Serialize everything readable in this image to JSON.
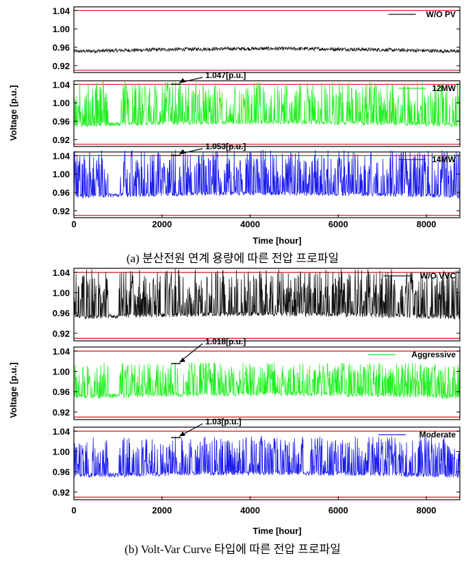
{
  "figure": {
    "caption_a": "(a) 분산전원 연계 용량에 따른 전압 프로파일",
    "caption_b": "(b) Volt-Var Curve 타입에 따른 전압 프로파일"
  },
  "colors": {
    "limit_line": "#d62728",
    "black": "#111111",
    "green": "#22ee22",
    "blue": "#1a1aee"
  },
  "chart_data": [
    {
      "type": "line",
      "group": "a",
      "xlim": [
        0,
        8760
      ],
      "ylim": [
        0.905,
        1.048
      ],
      "yticks": [
        "0.92",
        "0.96",
        "1.00",
        "1.04"
      ],
      "xticks": [
        "0",
        "2000",
        "4000",
        "6000",
        "8000"
      ],
      "ylabel": "Voltage [p.u.]",
      "xlabel": "Time [hour]",
      "limits": [
        0.91,
        1.04
      ],
      "panels": [
        {
          "legend": "W/O PV",
          "color": "#111111",
          "base": 0.951,
          "var": 0.008,
          "spike_max": 0.962,
          "annotation": ""
        },
        {
          "legend": "12MW",
          "color": "#22ee22",
          "base": 0.952,
          "var": 0.009,
          "spike_max": 1.047,
          "annotation": "1.047[p.u.]",
          "annot_x": 2300,
          "annot_y": 1.047
        },
        {
          "legend": "14MW",
          "color": "#1a1aee",
          "base": 0.952,
          "var": 0.009,
          "spike_max": 1.053,
          "annotation": "1.053[p.u.]",
          "annot_x": 2300,
          "annot_y": 1.053
        }
      ]
    },
    {
      "type": "line",
      "group": "b",
      "xlim": [
        0,
        8760
      ],
      "ylim": [
        0.905,
        1.048
      ],
      "yticks": [
        "0.92",
        "0.96",
        "1.00",
        "1.04"
      ],
      "xticks": [
        "0",
        "2000",
        "4000",
        "6000",
        "8000"
      ],
      "ylabel": "Voltage [p.u.]",
      "xlabel": "Time [hour]",
      "limits": [
        0.91,
        1.04
      ],
      "panels": [
        {
          "legend": "W/O VVC",
          "color": "#111111",
          "base": 0.952,
          "var": 0.009,
          "spike_max": 1.047,
          "annotation": ""
        },
        {
          "legend": "Aggressive",
          "color": "#22ee22",
          "base": 0.95,
          "var": 0.009,
          "spike_max": 1.018,
          "annotation": "1.018[p.u.]",
          "annot_x": 2300,
          "annot_y": 1.018
        },
        {
          "legend": "Moderate",
          "color": "#1a1aee",
          "base": 0.952,
          "var": 0.009,
          "spike_max": 1.03,
          "annotation": "1.03[p.u.]",
          "annot_x": 2300,
          "annot_y": 1.03
        }
      ]
    }
  ]
}
